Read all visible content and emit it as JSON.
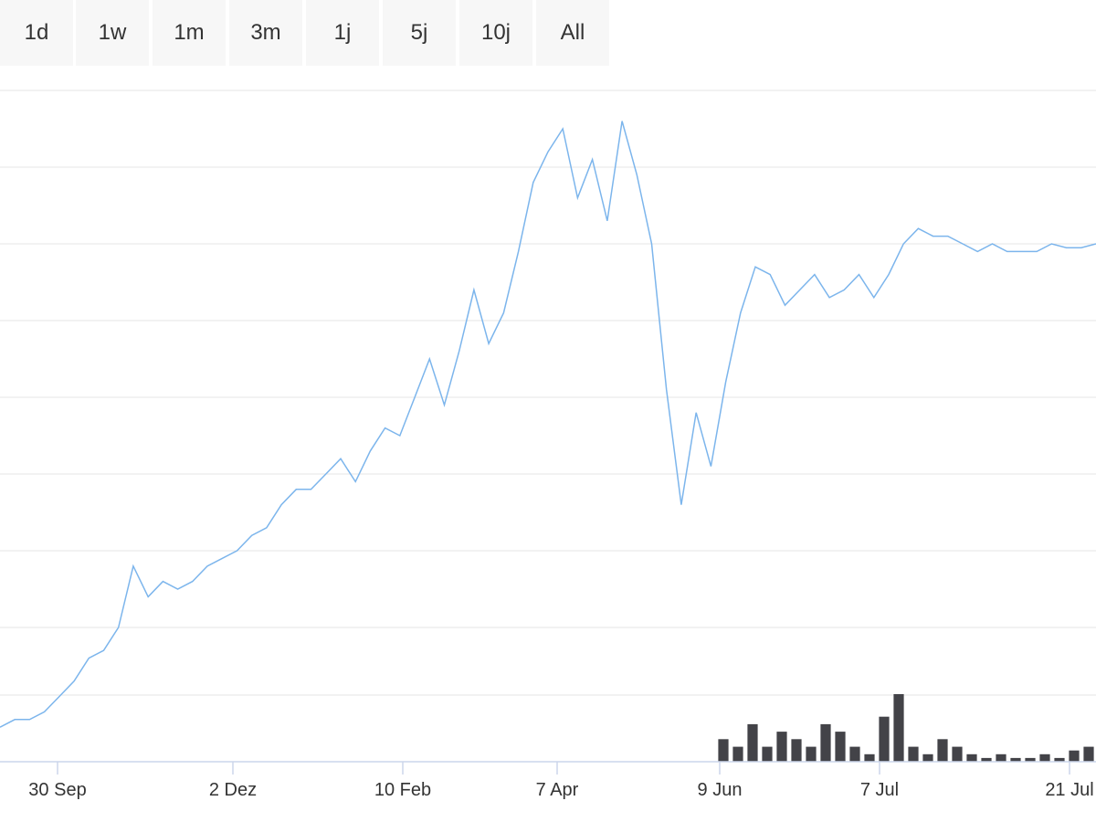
{
  "range_selector": {
    "buttons": [
      {
        "label": "1d"
      },
      {
        "label": "1w"
      },
      {
        "label": "1m"
      },
      {
        "label": "3m"
      },
      {
        "label": "1j"
      },
      {
        "label": "5j"
      },
      {
        "label": "10j"
      },
      {
        "label": "All"
      }
    ]
  },
  "colors": {
    "line": "#7cb5ec",
    "volume": "#434348",
    "grid": "#e6e6e6",
    "axis": "#ccd6eb",
    "button_bg": "#f7f7f7",
    "text": "#333333"
  },
  "chart_data": {
    "type": "line",
    "title": "",
    "xlabel": "",
    "ylabel": "",
    "grid": true,
    "legend": "none",
    "x_tick_labels": [
      "30 Sep",
      "2 Dez",
      "10 Feb",
      "7 Apr",
      "9 Jun",
      "7 Jul",
      "21 Jul"
    ],
    "ylim": [
      0,
      9
    ],
    "series": [
      {
        "kind": "line",
        "values": [
          0.7,
          0.8,
          0.8,
          0.9,
          1.1,
          1.3,
          1.6,
          1.7,
          2.0,
          2.8,
          2.4,
          2.6,
          2.5,
          2.6,
          2.8,
          2.9,
          3.0,
          3.2,
          3.3,
          3.6,
          3.8,
          3.8,
          4.0,
          4.2,
          3.9,
          4.3,
          4.6,
          4.5,
          5.0,
          5.5,
          4.9,
          5.6,
          6.4,
          5.7,
          6.1,
          6.9,
          7.8,
          8.2,
          8.5,
          7.6,
          8.1,
          7.3,
          8.6,
          7.9,
          7.0,
          5.1,
          3.6,
          4.8,
          4.1,
          5.2,
          6.1,
          6.7,
          6.6,
          6.2,
          6.4,
          6.6,
          6.3,
          6.4,
          6.6,
          6.3,
          6.6,
          7.0,
          7.2,
          7.1,
          7.1,
          7.0,
          6.9,
          7.0,
          6.9,
          6.9,
          6.9,
          7.0,
          6.95,
          6.95,
          7.0
        ]
      },
      {
        "kind": "volume",
        "values": [
          0,
          0,
          0,
          0,
          0,
          0,
          0,
          0,
          0,
          0,
          0,
          0,
          0,
          0,
          0,
          0,
          0,
          0,
          0,
          0,
          0,
          0,
          0,
          0,
          0,
          0,
          0,
          0,
          0,
          0,
          0,
          0,
          0,
          0,
          0,
          0,
          0,
          0,
          0,
          0,
          0,
          0,
          0,
          0,
          0,
          0,
          0,
          0,
          0,
          0.3,
          0.2,
          0.5,
          0.2,
          0.4,
          0.3,
          0.2,
          0.5,
          0.4,
          0.2,
          0.1,
          0.6,
          0.9,
          0.2,
          0.1,
          0.3,
          0.2,
          0.1,
          0.05,
          0.1,
          0.05,
          0.05,
          0.1,
          0.05,
          0.15,
          0.2
        ]
      }
    ]
  }
}
